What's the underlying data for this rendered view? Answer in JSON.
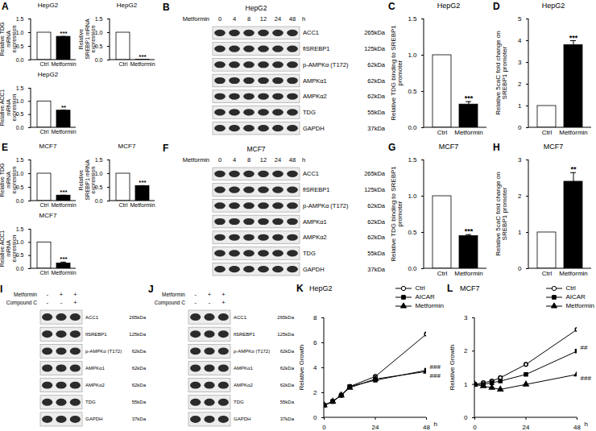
{
  "chart_data": [
    {
      "panel": "A",
      "type": "bar",
      "title": "HepG2",
      "ylabel": "Relative TDG mRNA expression",
      "categories": [
        "Ctrl",
        "Metformin"
      ],
      "values": [
        1,
        0.85
      ],
      "errors": [
        0,
        0.01
      ],
      "significance": [
        null,
        "***"
      ],
      "colors": [
        "#ffffff",
        "#000000"
      ],
      "ylim": [
        0,
        1.5
      ],
      "yticks": [
        {
          "value": 0,
          "label": "0.0"
        },
        {
          "value": 0.5,
          "label": "0.5"
        },
        {
          "value": 1,
          "label": "1.0"
        },
        {
          "value": 1.5,
          "label": "1.5"
        }
      ]
    },
    {
      "type": "bar",
      "title": "HepG2",
      "ylabel": "Relative SREBP1 mRNA expression",
      "categories": [
        "Ctrl",
        "Metformin"
      ],
      "values": [
        1,
        0.01
      ],
      "errors": [
        0,
        0
      ],
      "significance": [
        null,
        "***"
      ],
      "colors": [
        "#ffffff",
        "#000000"
      ],
      "ylim": [
        0,
        1.5
      ],
      "yticks": [
        {
          "value": 0,
          "label": "0.0"
        },
        {
          "value": 0.5,
          "label": "0.5"
        },
        {
          "value": 1,
          "label": "1.0"
        },
        {
          "value": 1.5,
          "label": "1.5"
        }
      ]
    },
    {
      "type": "bar",
      "title": "HepG2",
      "ylabel": "Relative ACC1 mRNA expression",
      "categories": [
        "Ctrl",
        "Metformin"
      ],
      "values": [
        1,
        0.65
      ],
      "errors": [
        0,
        0.02
      ],
      "significance": [
        null,
        "**"
      ],
      "colors": [
        "#ffffff",
        "#000000"
      ],
      "ylim": [
        0,
        1.5
      ],
      "yticks": [
        {
          "value": 0,
          "label": "0.0"
        },
        {
          "value": 0.5,
          "label": "0.5"
        },
        {
          "value": 1,
          "label": "1.0"
        },
        {
          "value": 1.5,
          "label": "1.5"
        }
      ]
    },
    {
      "panel": "C",
      "type": "bar",
      "title": "HepG2",
      "ylabel": "Relative TDG binding to SREBP1 promoter",
      "categories": [
        "Ctrl",
        "Metformin"
      ],
      "values": [
        1,
        0.32
      ],
      "errors": [
        0,
        0.04
      ],
      "significance": [
        null,
        "***"
      ],
      "colors": [
        "#ffffff",
        "#000000"
      ],
      "ylim": [
        0,
        1.5
      ],
      "yticks": [
        {
          "value": 0,
          "label": "0.0"
        },
        {
          "value": 0.5,
          "label": "0.5"
        },
        {
          "value": 1,
          "label": "1.0"
        },
        {
          "value": 1.5,
          "label": "1.5"
        }
      ]
    },
    {
      "panel": "D",
      "type": "bar",
      "title": "HepG2",
      "ylabel": "Relative 5caC fold change on SREBP1 promoter",
      "categories": [
        "Ctrl",
        "Metformin"
      ],
      "values": [
        1,
        3.8
      ],
      "errors": [
        0,
        0.2
      ],
      "significance": [
        null,
        "***"
      ],
      "colors": [
        "#ffffff",
        "#000000"
      ],
      "ylim": [
        0,
        5
      ],
      "yticks": [
        0,
        1,
        2,
        3,
        4,
        5
      ]
    },
    {
      "panel": "E",
      "type": "bar",
      "title": "MCF7",
      "ylabel": "Relative TDG mRNA expression",
      "categories": [
        "Ctrl",
        "Metformin"
      ],
      "values": [
        1,
        0.2
      ],
      "errors": [
        0,
        0.01
      ],
      "significance": [
        null,
        "***"
      ],
      "colors": [
        "#ffffff",
        "#000000"
      ],
      "ylim": [
        0,
        1.5
      ],
      "yticks": [
        {
          "value": 0,
          "label": "0.0"
        },
        {
          "value": 0.5,
          "label": "0.5"
        },
        {
          "value": 1,
          "label": "1.0"
        },
        {
          "value": 1.5,
          "label": "1.5"
        }
      ]
    },
    {
      "type": "bar",
      "title": "MCF7",
      "ylabel": "Relative SREBP1 mRNA expression",
      "categories": [
        "Ctrl",
        "Metformin"
      ],
      "values": [
        1,
        0.55
      ],
      "errors": [
        0,
        0.01
      ],
      "significance": [
        null,
        "***"
      ],
      "colors": [
        "#ffffff",
        "#000000"
      ],
      "ylim": [
        0,
        1.5
      ],
      "yticks": [
        {
          "value": 0,
          "label": "0.0"
        },
        {
          "value": 0.5,
          "label": "0.5"
        },
        {
          "value": 1,
          "label": "1.0"
        },
        {
          "value": 1.5,
          "label": "1.5"
        }
      ]
    },
    {
      "type": "bar",
      "title": "MCF7",
      "ylabel": "Relative ACC1 mRNA expression",
      "categories": [
        "Ctrl",
        "Metformin"
      ],
      "values": [
        1,
        0.2
      ],
      "errors": [
        0,
        0.05
      ],
      "significance": [
        null,
        "***"
      ],
      "colors": [
        "#ffffff",
        "#000000"
      ],
      "ylim": [
        0,
        1.5
      ],
      "yticks": [
        {
          "value": 0,
          "label": "0.0"
        },
        {
          "value": 0.5,
          "label": "0.5"
        },
        {
          "value": 1,
          "label": "1.0"
        },
        {
          "value": 1.5,
          "label": "1.5"
        }
      ]
    },
    {
      "panel": "G",
      "type": "bar",
      "title": "MCF7",
      "ylabel": "Relative TDG binding to SREBP1 promoter",
      "categories": [
        "Ctrl",
        "Metformin"
      ],
      "values": [
        1,
        0.45
      ],
      "errors": [
        0,
        0.02
      ],
      "significance": [
        null,
        "***"
      ],
      "colors": [
        "#ffffff",
        "#000000"
      ],
      "ylim": [
        0,
        1.5
      ],
      "yticks": [
        {
          "value": 0,
          "label": "0.0"
        },
        {
          "value": 0.5,
          "label": "0.5"
        },
        {
          "value": 1,
          "label": "1.0"
        },
        {
          "value": 1.5,
          "label": "1.5"
        }
      ]
    },
    {
      "panel": "H",
      "type": "bar",
      "title": "MCF7",
      "ylabel": "Relative 5caC fold change on SREBP1 promoter",
      "categories": [
        "Ctrl",
        "Metformin"
      ],
      "values": [
        1,
        2.4
      ],
      "errors": [
        0,
        0.25
      ],
      "significance": [
        null,
        "**"
      ],
      "colors": [
        "#ffffff",
        "#000000"
      ],
      "ylim": [
        0,
        3
      ],
      "yticks": [
        0,
        1,
        2,
        3
      ]
    },
    {
      "panel": "K",
      "type": "line",
      "title": "HepG2",
      "ylabel": "Relative Growth",
      "xlabel": "h",
      "x": [
        0,
        4,
        8,
        12,
        24,
        48
      ],
      "xlim": [
        0,
        48
      ],
      "xticks": [
        0,
        24,
        48
      ],
      "ylim": [
        0,
        8
      ],
      "yticks": [
        0,
        2,
        4,
        6,
        8
      ],
      "legend": "top-right",
      "series": [
        {
          "name": "Ctrl",
          "color": "#000000",
          "marker": "circle-open",
          "values": [
            1,
            1.3,
            1.8,
            2.5,
            3.3,
            6.7
          ]
        },
        {
          "name": "AICAR",
          "color": "#000000",
          "marker": "square",
          "values": [
            1,
            1.3,
            1.8,
            2.5,
            3.0,
            3.8
          ],
          "annotation": "###"
        },
        {
          "name": "Metformin",
          "color": "#000000",
          "marker": "triangle",
          "values": [
            1,
            1.3,
            1.8,
            2.4,
            3.1,
            3.7
          ],
          "annotation": "###"
        }
      ]
    },
    {
      "panel": "L",
      "type": "line",
      "title": "MCF7",
      "ylabel": "Relative Growth",
      "xlabel": "h",
      "x": [
        0,
        4,
        8,
        12,
        24,
        48
      ],
      "xlim": [
        0,
        48
      ],
      "xticks": [
        0,
        24,
        48
      ],
      "ylim": [
        0,
        3
      ],
      "yticks": [
        0,
        1,
        2,
        3
      ],
      "legend": "top-right",
      "series": [
        {
          "name": "Ctrl",
          "color": "#000000",
          "marker": "circle-open",
          "values": [
            1,
            1.05,
            1.1,
            1.2,
            1.6,
            2.65
          ]
        },
        {
          "name": "AICAR",
          "color": "#000000",
          "marker": "square",
          "values": [
            1,
            1.0,
            1.05,
            1.1,
            1.3,
            2.0
          ],
          "annotation": "##"
        },
        {
          "name": "Metformin",
          "color": "#000000",
          "marker": "triangle",
          "values": [
            1,
            0.95,
            0.9,
            0.85,
            1.0,
            1.3
          ],
          "annotation": "###"
        }
      ]
    }
  ],
  "blots": [
    {
      "panel": "B",
      "title": "HepG2",
      "treatment": "Metformin",
      "lanes": [
        "0",
        "4",
        "8",
        "12",
        "24",
        "48"
      ],
      "unit": "h",
      "rows": [
        {
          "protein": "ACC1",
          "size": "265kDa"
        },
        {
          "protein": "flSREBP1",
          "size": "125kDa"
        },
        {
          "protein": "p-AMPKα (T172)",
          "size": "62kDa"
        },
        {
          "protein": "AMPKα1",
          "size": "62kDa"
        },
        {
          "protein": "AMPKα2",
          "size": "62kDa"
        },
        {
          "protein": "TDG",
          "size": "55kDa"
        },
        {
          "protein": "GAPDH",
          "size": "37kDa"
        }
      ]
    },
    {
      "panel": "F",
      "title": "MCF7",
      "treatment": "Metformin",
      "lanes": [
        "0",
        "4",
        "8",
        "12",
        "24",
        "48"
      ],
      "unit": "h",
      "rows": [
        {
          "protein": "ACC1",
          "size": "265kDa"
        },
        {
          "protein": "flSREBP1",
          "size": "125kDa"
        },
        {
          "protein": "p-AMPKα (T172)",
          "size": "62kDa"
        },
        {
          "protein": "AMPKα1",
          "size": "62kDa"
        },
        {
          "protein": "AMPKα2",
          "size": "62kDa"
        },
        {
          "protein": "TDG",
          "size": "55kDa"
        },
        {
          "protein": "GAPDH",
          "size": "37kDa"
        }
      ]
    },
    {
      "panel": "I",
      "conditions": [
        {
          "name": "Metformin",
          "lanes": [
            "-",
            "+",
            "+"
          ]
        },
        {
          "name": "Compound C",
          "lanes": [
            "-",
            "-",
            "+"
          ]
        }
      ],
      "rows": [
        {
          "protein": "ACC1",
          "size": "265kDa"
        },
        {
          "protein": "flSREBP1",
          "size": "125kDa"
        },
        {
          "protein": "p-AMPKα (T172)",
          "size": "62kDa"
        },
        {
          "protein": "AMPKα1",
          "size": "62kDa"
        },
        {
          "protein": "AMPKα2",
          "size": "62kDa"
        },
        {
          "protein": "TDG",
          "size": "55kDa"
        },
        {
          "protein": "GAPDH",
          "size": "37kDa"
        }
      ]
    },
    {
      "panel": "J",
      "conditions": [
        {
          "name": "Metformin",
          "lanes": [
            "-",
            "+",
            "+"
          ]
        },
        {
          "name": "Compound C",
          "lanes": [
            "-",
            "-",
            "+"
          ]
        }
      ],
      "rows": [
        {
          "protein": "ACC1",
          "size": "265kDa"
        },
        {
          "protein": "flSREBP1",
          "size": "125kDa"
        },
        {
          "protein": "p-AMPKα (T172)",
          "size": "62kDa"
        },
        {
          "protein": "AMPKα1",
          "size": "62kDa"
        },
        {
          "protein": "AMPKα2",
          "size": "62kDa"
        },
        {
          "protein": "TDG",
          "size": "55kDa"
        },
        {
          "protein": "GAPDH",
          "size": "37kDa"
        }
      ]
    }
  ]
}
